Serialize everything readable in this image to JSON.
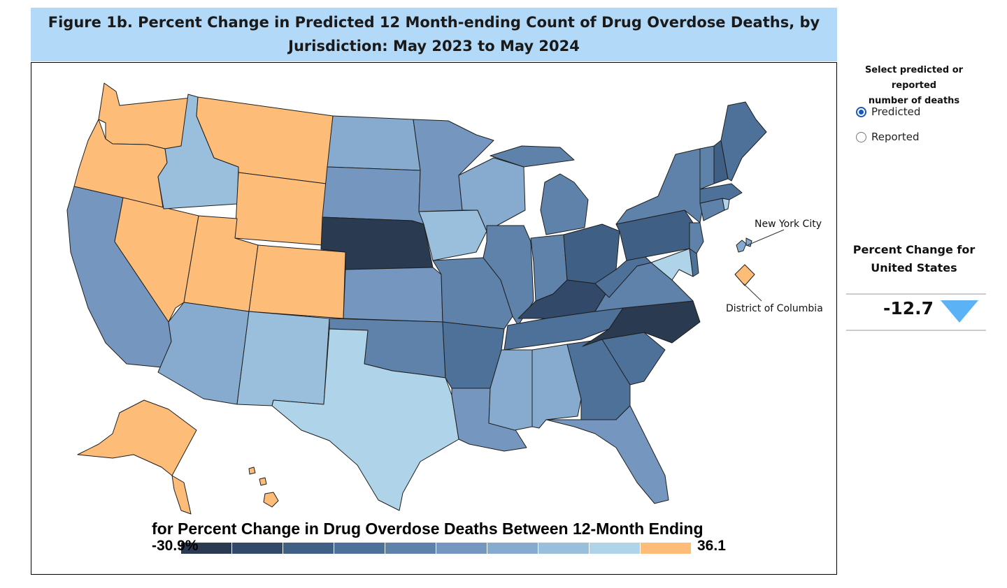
{
  "title": {
    "line1": "Figure 1b. Percent Change in Predicted 12 Month-ending Count of Drug Overdose Deaths, by",
    "line2": "Jurisdiction: May 2023 to May 2024"
  },
  "legend": {
    "title": "for Percent Change in Drug Overdose Deaths Between 12-Month Ending",
    "min_label": "-30.9%",
    "max_label": "36.1",
    "colors": [
      "#2a3a50",
      "#33496a",
      "#3f5f84",
      "#4d7198",
      "#5e82aa",
      "#7597bf",
      "#86abcf",
      "#99bfdc",
      "#afd4ea",
      "#fdbd78"
    ]
  },
  "callouts": {
    "nyc": "New York City",
    "dc": "District of Columbia"
  },
  "controls": {
    "select_label_line1": "Select predicted or reported",
    "select_label_line2": "number of deaths",
    "options": [
      {
        "label": "Predicted",
        "checked": true
      },
      {
        "label": "Reported",
        "checked": false
      }
    ]
  },
  "us_summary": {
    "label_line1": "Percent Change for",
    "label_line2": "United States",
    "value": "-12.7",
    "direction_icon": "down-triangle-icon",
    "arrow_color": "#5bb3f5"
  }
}
